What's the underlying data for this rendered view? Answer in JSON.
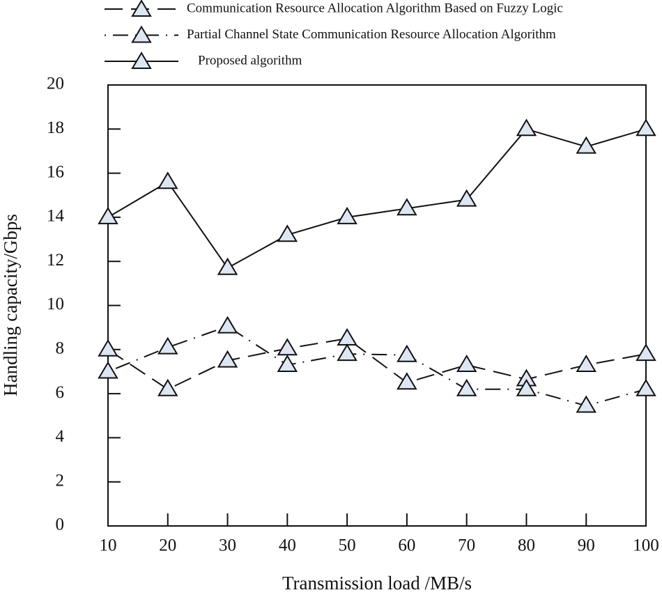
{
  "chart_data": {
    "type": "line",
    "x_label": "Transmission load /MB/s",
    "y_label": "Handling capacity/Gbps",
    "x": [
      10,
      20,
      30,
      40,
      50,
      60,
      70,
      80,
      90,
      100
    ],
    "series": [
      {
        "name": "Communication Resource Allocation Algorithm Based on Fuzzy Logic",
        "color": "#111111",
        "dash": "dashed",
        "values": [
          8.0,
          6.2,
          7.5,
          8.05,
          8.5,
          6.5,
          7.3,
          6.65,
          7.3,
          7.8
        ]
      },
      {
        "name": "Partial Channel State Communication Resource Allocation Algorithm",
        "color": "#111111",
        "dash": "dashdot",
        "values": [
          7.0,
          8.1,
          9.05,
          7.3,
          7.8,
          7.75,
          6.2,
          6.2,
          5.45,
          6.2
        ]
      },
      {
        "name": "Proposed algorithm",
        "color": "#111111",
        "dash": "solid",
        "values": [
          14.0,
          15.6,
          11.7,
          13.2,
          14.0,
          14.4,
          14.8,
          18.0,
          17.2,
          18.0
        ]
      }
    ],
    "marker_fill": "#dde6f2",
    "xlim": [
      10,
      100
    ],
    "xticks": [
      10,
      20,
      30,
      40,
      50,
      60,
      70,
      80,
      90,
      100
    ],
    "ylim": [
      0,
      20
    ],
    "yticks": [
      0,
      2,
      4,
      6,
      8,
      10,
      12,
      14,
      16,
      18,
      20
    ],
    "grid": false,
    "legend": "top"
  }
}
